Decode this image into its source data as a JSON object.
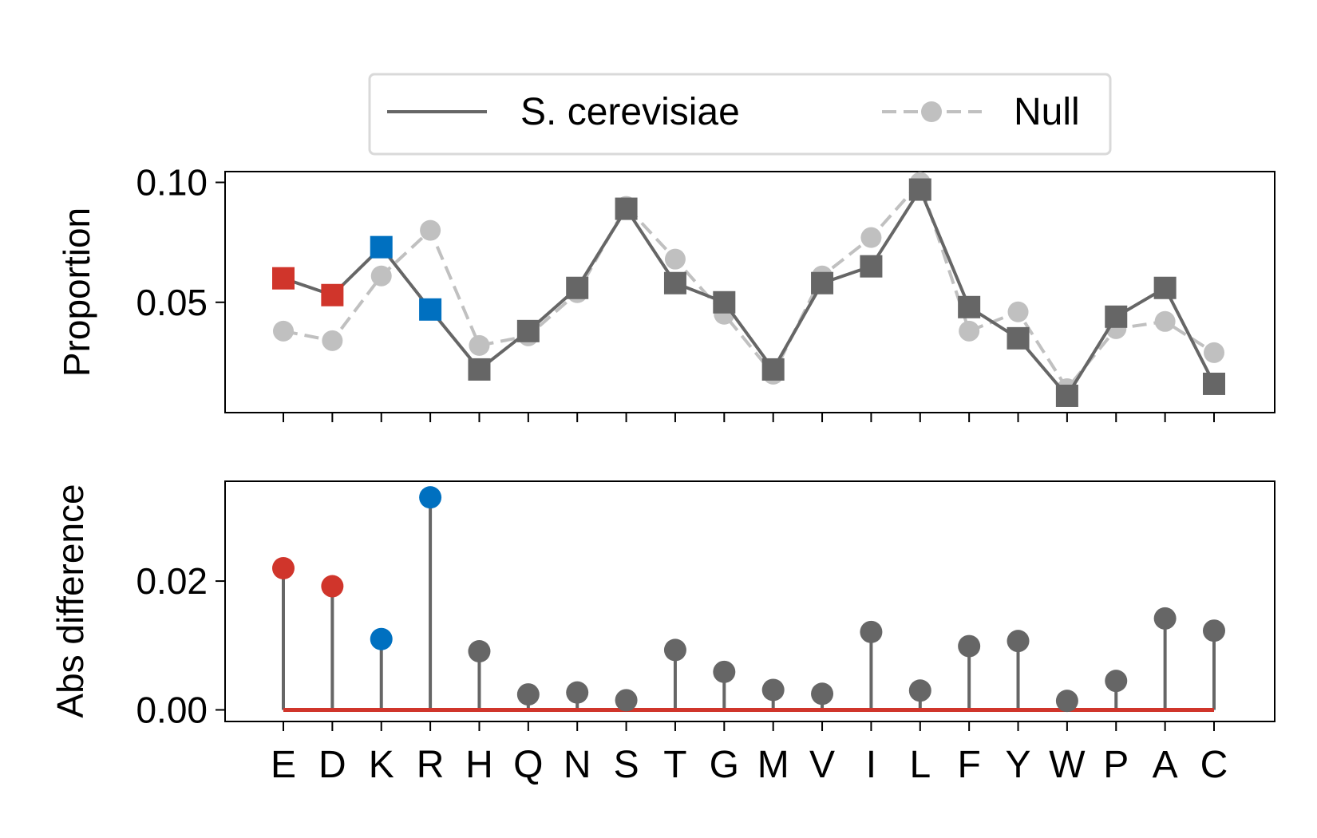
{
  "colors": {
    "species": "#666666",
    "null": "#c0c0c0",
    "acidic": "#d0352b",
    "basic": "#0070c0",
    "baseline": "#d0352b",
    "axis": "#000000",
    "legend_border": "#d9d9d9"
  },
  "legend": {
    "species_label": "S. cerevisiae",
    "null_label": "Null",
    "placement": "top-center"
  },
  "chart_data": [
    {
      "type": "line",
      "ylabel": "Proportion",
      "ylim": [
        0.004,
        0.1045
      ],
      "yticks": [
        "0.05",
        "0.10"
      ],
      "ytick_values": [
        0.05,
        0.1
      ],
      "grid": false,
      "categories": [
        "E",
        "D",
        "K",
        "R",
        "H",
        "Q",
        "N",
        "S",
        "T",
        "G",
        "M",
        "V",
        "I",
        "L",
        "F",
        "Y",
        "W",
        "P",
        "A",
        "C"
      ],
      "series": [
        {
          "name": "S. cerevisiae",
          "marker": "square",
          "line": "solid",
          "values": [
            0.06,
            0.053,
            0.073,
            0.047,
            0.022,
            0.038,
            0.056,
            0.089,
            0.058,
            0.05,
            0.022,
            0.058,
            0.065,
            0.097,
            0.048,
            0.035,
            0.011,
            0.044,
            0.056,
            0.016
          ]
        },
        {
          "name": "Null",
          "marker": "circle",
          "line": "dashed",
          "values": [
            0.038,
            0.034,
            0.061,
            0.08,
            0.032,
            0.036,
            0.054,
            0.09,
            0.068,
            0.045,
            0.02,
            0.061,
            0.077,
            0.1,
            0.038,
            0.046,
            0.014,
            0.039,
            0.042,
            0.029
          ]
        }
      ],
      "highlight_colors": [
        "acidic",
        "acidic",
        "basic",
        "basic",
        "species",
        "species",
        "species",
        "species",
        "species",
        "species",
        "species",
        "species",
        "species",
        "species",
        "species",
        "species",
        "species",
        "species",
        "species",
        "species"
      ]
    },
    {
      "type": "stem",
      "ylabel": "Abs difference",
      "ylim": [
        -0.0018,
        0.0355
      ],
      "yticks": [
        "0.00",
        "0.02"
      ],
      "ytick_values": [
        0.0,
        0.02
      ],
      "grid": false,
      "categories": [
        "E",
        "D",
        "K",
        "R",
        "H",
        "Q",
        "N",
        "S",
        "T",
        "G",
        "M",
        "V",
        "I",
        "L",
        "F",
        "Y",
        "W",
        "P",
        "A",
        "C"
      ],
      "values": [
        0.022,
        0.0192,
        0.011,
        0.033,
        0.0091,
        0.0024,
        0.0027,
        0.0015,
        0.0093,
        0.0059,
        0.0031,
        0.0025,
        0.0121,
        0.003,
        0.0099,
        0.0107,
        0.0014,
        0.0045,
        0.0142,
        0.0123
      ],
      "baseline": 0.0,
      "highlight_colors": [
        "acidic",
        "acidic",
        "basic",
        "basic",
        "species",
        "species",
        "species",
        "species",
        "species",
        "species",
        "species",
        "species",
        "species",
        "species",
        "species",
        "species",
        "species",
        "species",
        "species",
        "species"
      ]
    }
  ]
}
